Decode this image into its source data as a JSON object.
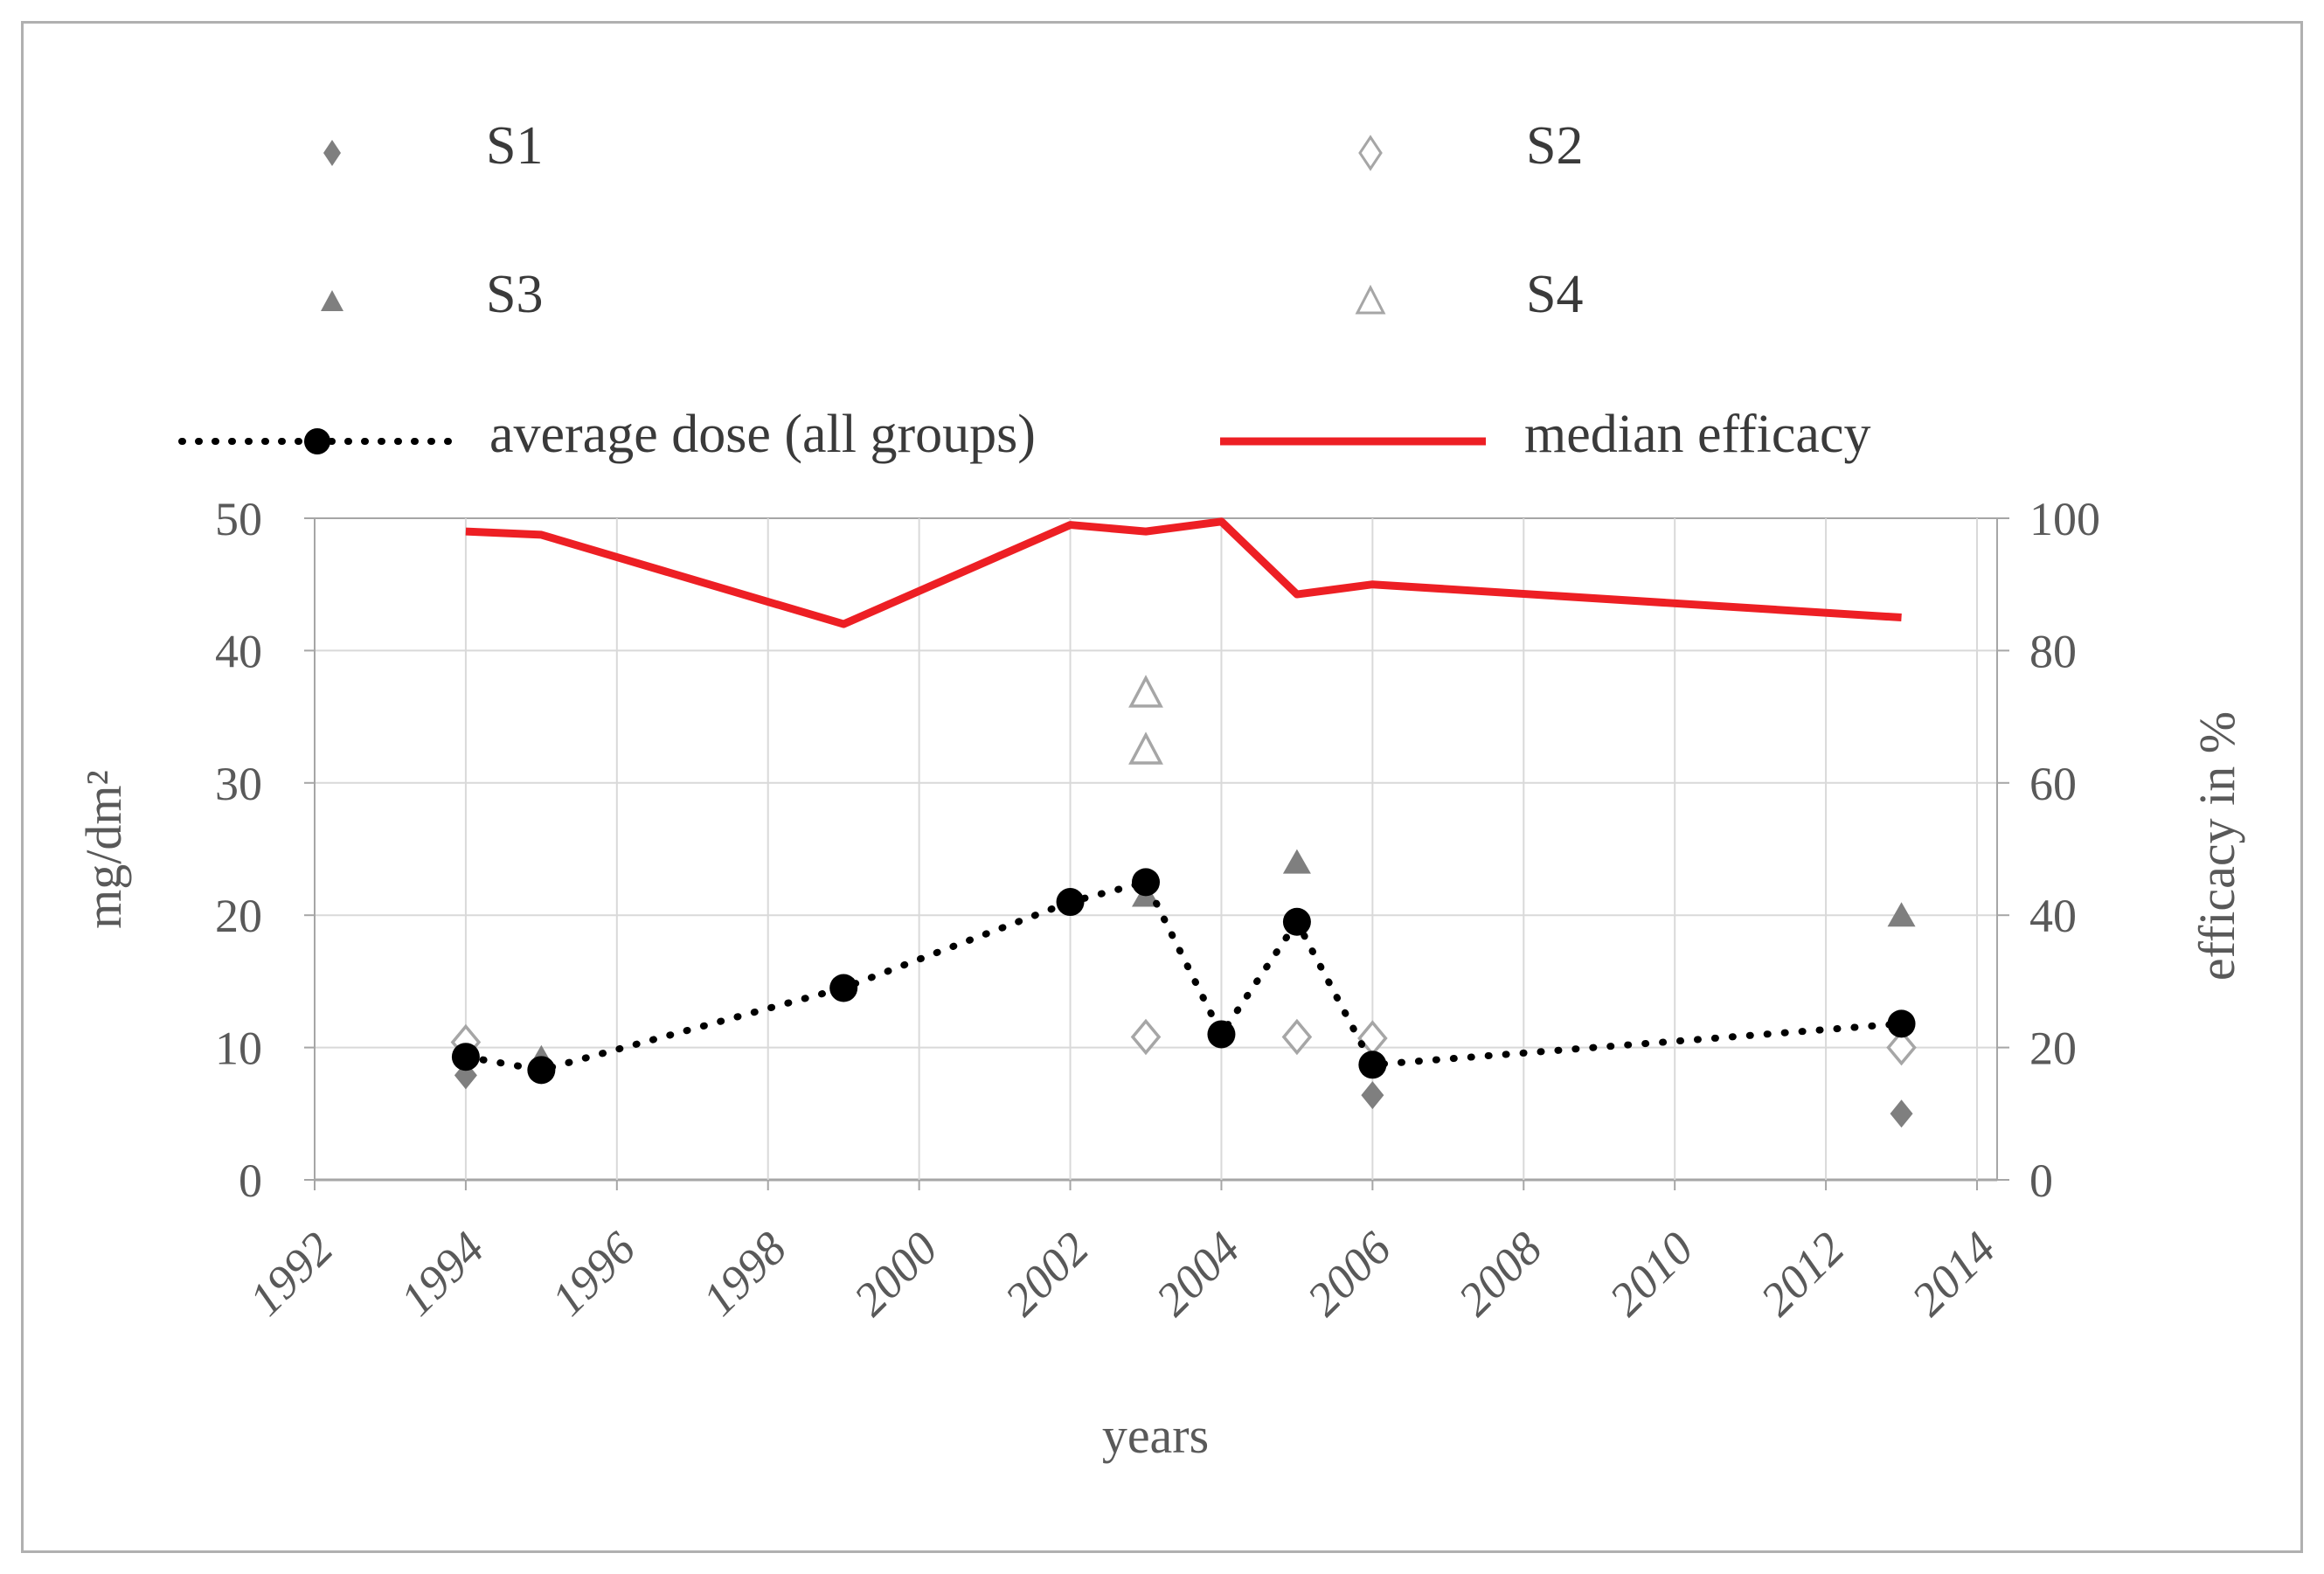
{
  "figure": {
    "background": "#ffffff",
    "border_color": "#b0b0b0",
    "grid_color": "#d9d9d9",
    "axis_color": "#a6a6a6",
    "tick_label_color": "#595959"
  },
  "legend": {
    "items": [
      {
        "id": "s1",
        "label": "S1",
        "marker": "diamond-filled",
        "color": "#7f7f7f"
      },
      {
        "id": "s2",
        "label": "S2",
        "marker": "diamond-open",
        "color": "#a6a6a6"
      },
      {
        "id": "s3",
        "label": "S3",
        "marker": "triangle-filled",
        "color": "#7f7f7f"
      },
      {
        "id": "s4",
        "label": "S4",
        "marker": "triangle-open",
        "color": "#a6a6a6"
      },
      {
        "id": "avg_dose",
        "label": "average dose (all groups)",
        "marker": "dotted-line-circle",
        "color": "#000000"
      },
      {
        "id": "median_efficacy",
        "label": "median efficacy",
        "marker": "solid-line",
        "color": "#ed1f24"
      }
    ]
  },
  "chart_data": {
    "type": "line",
    "title": "",
    "xlabel": "years",
    "x_axis": {
      "min": 1992,
      "max": 2014,
      "ticks": [
        1992,
        1994,
        1996,
        1998,
        2000,
        2002,
        2004,
        2006,
        2008,
        2010,
        2012,
        2014
      ]
    },
    "y_left": {
      "label": "mg/dm²",
      "min": 0,
      "max": 50,
      "ticks": [
        0,
        10,
        20,
        30,
        40,
        50
      ]
    },
    "y_right": {
      "label": "efficacy in %",
      "min": 0,
      "max": 100,
      "ticks": [
        0,
        20,
        40,
        60,
        80,
        100
      ]
    },
    "grid": "on",
    "legend_position": "top",
    "series": [
      {
        "id": "median_efficacy",
        "name": "median efficacy",
        "type": "line",
        "line": "solid",
        "marker": "none",
        "color": "#ed1f24",
        "axis": "right",
        "z": 1,
        "points": [
          [
            1994,
            98
          ],
          [
            1995,
            97.5
          ],
          [
            1999,
            84
          ],
          [
            2002,
            99
          ],
          [
            2003,
            98
          ],
          [
            2004,
            99.5
          ],
          [
            2005,
            88.5
          ],
          [
            2006,
            90
          ],
          [
            2013,
            85
          ]
        ]
      },
      {
        "id": "s4",
        "name": "S4",
        "type": "scatter",
        "marker": "triangle-open",
        "color": "#a6a6a6",
        "axis": "left",
        "z": 2,
        "points": [
          [
            2003,
            36.8
          ],
          [
            2003,
            32.5
          ]
        ]
      },
      {
        "id": "s3",
        "name": "S3",
        "type": "scatter",
        "marker": "triangle-filled",
        "color": "#7f7f7f",
        "axis": "left",
        "z": 3,
        "points": [
          [
            1995,
            9.2
          ],
          [
            2003,
            21.5
          ],
          [
            2005,
            24
          ],
          [
            2013,
            20
          ]
        ]
      },
      {
        "id": "s2",
        "name": "S2",
        "type": "scatter",
        "marker": "diamond-open",
        "color": "#a6a6a6",
        "axis": "left",
        "z": 4,
        "points": [
          [
            1994,
            10.4
          ],
          [
            2003,
            10.8
          ],
          [
            2005,
            10.8
          ],
          [
            2006,
            10.7
          ],
          [
            2013,
            10
          ]
        ]
      },
      {
        "id": "s1",
        "name": "S1",
        "type": "scatter",
        "marker": "diamond-filled",
        "color": "#7f7f7f",
        "axis": "left",
        "z": 5,
        "points": [
          [
            1994,
            7.9
          ],
          [
            2006,
            6.4
          ],
          [
            2013,
            5
          ]
        ]
      },
      {
        "id": "avg_dose",
        "name": "average dose (all groups)",
        "type": "line",
        "line": "dotted",
        "marker": "circle-filled",
        "color": "#000000",
        "axis": "left",
        "z": 6,
        "points": [
          [
            1994,
            9.3
          ],
          [
            1995,
            8.3
          ],
          [
            1999,
            14.5
          ],
          [
            2002,
            21
          ],
          [
            2003,
            22.5
          ],
          [
            2004,
            11
          ],
          [
            2005,
            19.5
          ],
          [
            2006,
            8.7
          ],
          [
            2013,
            11.8
          ]
        ]
      }
    ]
  }
}
